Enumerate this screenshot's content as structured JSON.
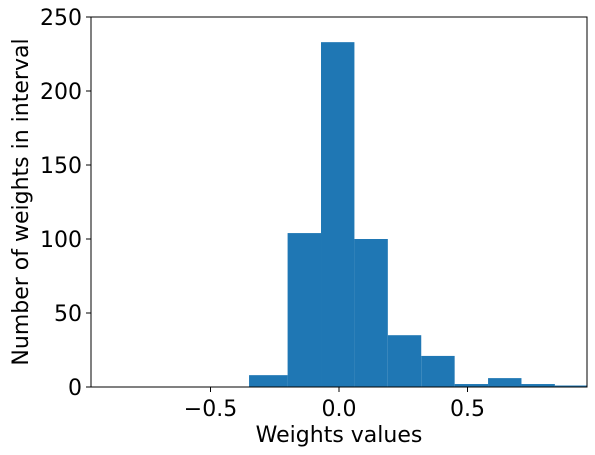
{
  "chart_data": {
    "type": "bar",
    "title": "",
    "xlabel": "Weights values",
    "ylabel": "Number of weights in interval",
    "xlim": [
      -0.965,
      0.965
    ],
    "ylim": [
      0,
      250
    ],
    "grid": false,
    "bar_color": "#1f77b4",
    "bins": [
      {
        "x0": -0.35,
        "x1": -0.2,
        "count": 8
      },
      {
        "x0": -0.2,
        "x1": -0.07,
        "count": 104
      },
      {
        "x0": -0.07,
        "x1": 0.06,
        "count": 233
      },
      {
        "x0": 0.06,
        "x1": 0.19,
        "count": 100
      },
      {
        "x0": 0.19,
        "x1": 0.32,
        "count": 35
      },
      {
        "x0": 0.32,
        "x1": 0.45,
        "count": 21
      },
      {
        "x0": 0.45,
        "x1": 0.58,
        "count": 2
      },
      {
        "x0": 0.58,
        "x1": 0.71,
        "count": 6
      },
      {
        "x0": 0.71,
        "x1": 0.84,
        "count": 2
      },
      {
        "x0": 0.84,
        "x1": 0.965,
        "count": 1
      }
    ],
    "x_ticks": [
      {
        "value": -0.5,
        "label": "−0.5"
      },
      {
        "value": 0.0,
        "label": "0.0"
      },
      {
        "value": 0.5,
        "label": "0.5"
      }
    ],
    "y_ticks": [
      {
        "value": 0,
        "label": "0"
      },
      {
        "value": 50,
        "label": "50"
      },
      {
        "value": 100,
        "label": "100"
      },
      {
        "value": 150,
        "label": "150"
      },
      {
        "value": 200,
        "label": "200"
      },
      {
        "value": 250,
        "label": "250"
      }
    ]
  }
}
